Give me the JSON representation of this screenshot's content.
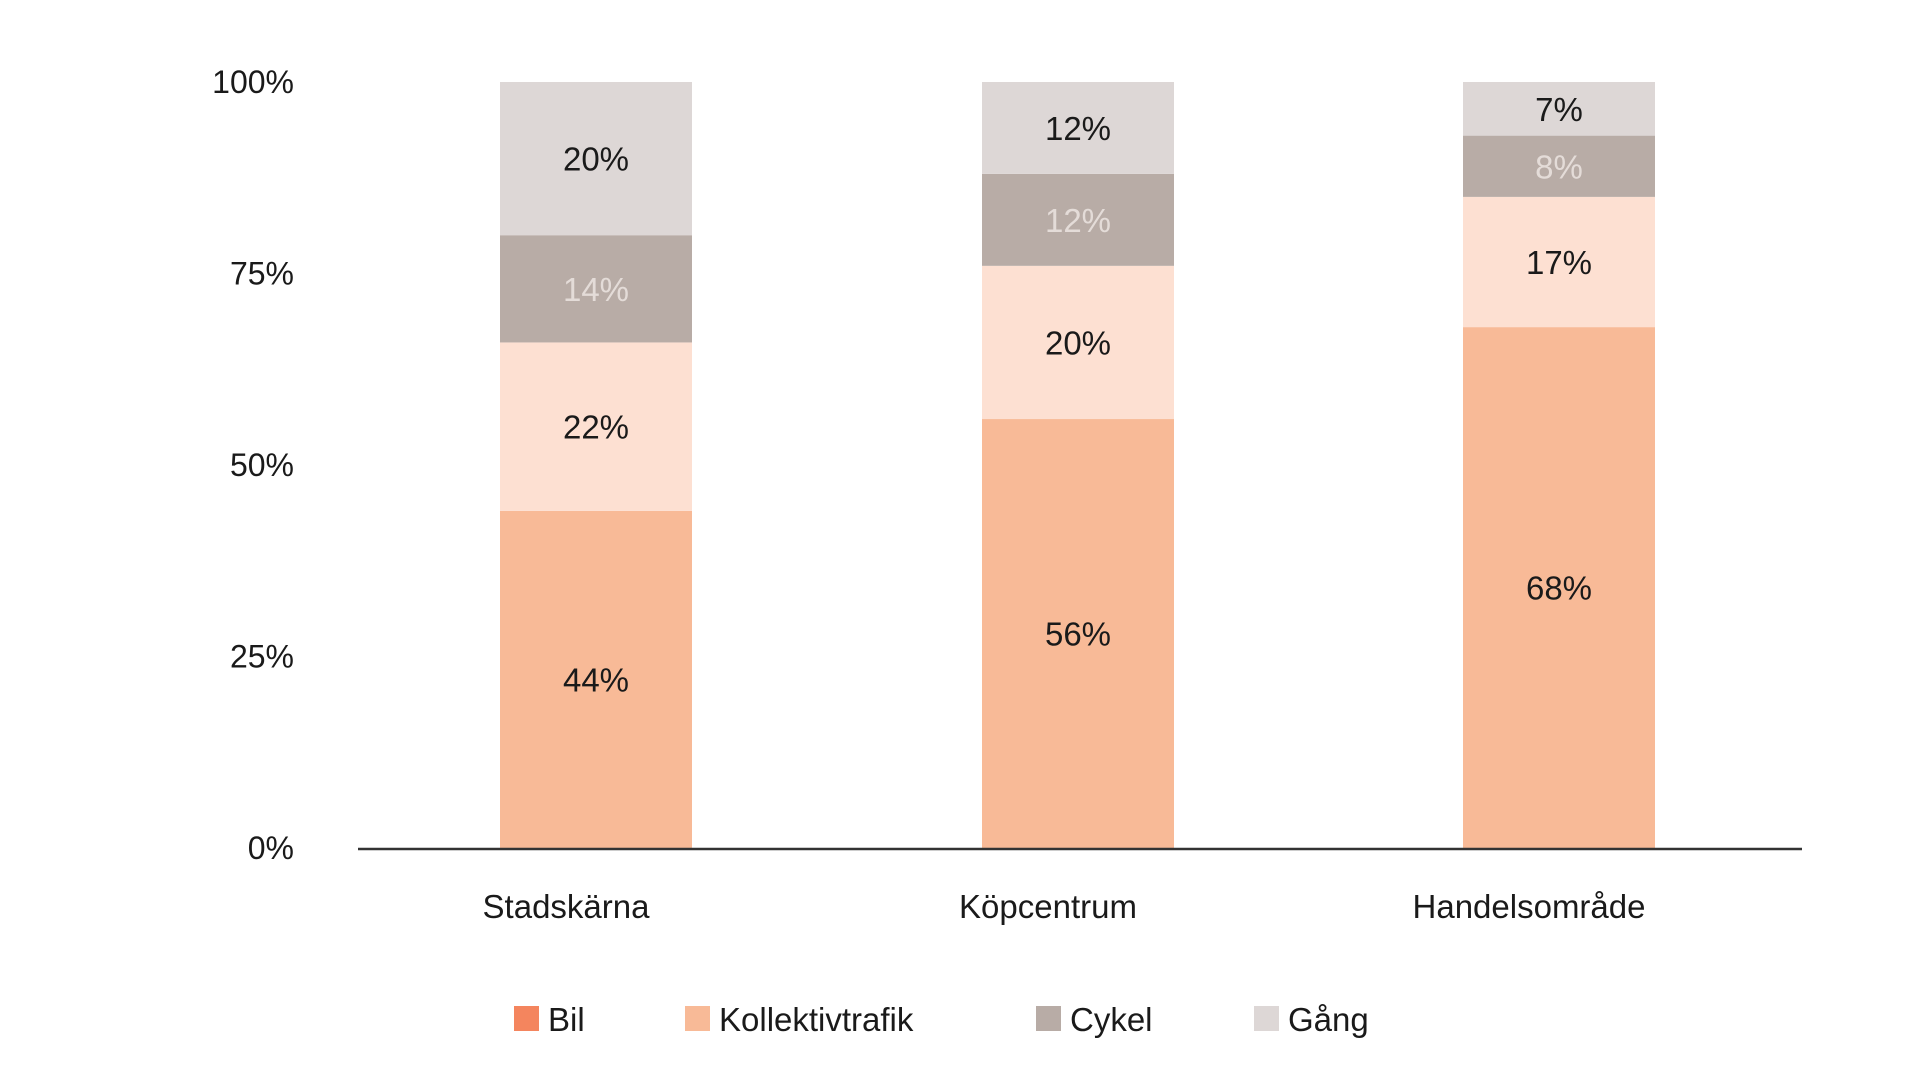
{
  "chart_data": {
    "type": "bar",
    "stacked": true,
    "categories": [
      "Stadskärna",
      "Köpcentrum",
      "Handelsområde"
    ],
    "series": [
      {
        "name": "Bil",
        "values": [
          null,
          null,
          null
        ],
        "color": "#f4855e"
      },
      {
        "name": "Kollektivtrafik",
        "values": [
          44,
          56,
          68
        ],
        "labels": [
          "44%",
          "56%",
          "68%"
        ],
        "color": "#f8ba97",
        "label_color": "#1a1a1a"
      },
      {
        "name": "",
        "values": [
          22,
          20,
          17
        ],
        "labels": [
          "22%",
          "20%",
          "17%"
        ],
        "color": "#fde0d2",
        "label_color": "#1a1a1a"
      },
      {
        "name": "Cykel",
        "values": [
          14,
          12,
          8
        ],
        "labels": [
          "14%",
          "12%",
          "8%"
        ],
        "color": "#b8aca6",
        "label_color": "#e4dcd8"
      },
      {
        "name": "Gång",
        "values": [
          20,
          12,
          7
        ],
        "labels": [
          "20%",
          "12%",
          "7%"
        ],
        "color": "#ddd7d6",
        "label_color": "#1a1a1a"
      }
    ],
    "yticks": [
      {
        "value": 0,
        "label": "0%"
      },
      {
        "value": 25,
        "label": "25%"
      },
      {
        "value": 50,
        "label": "50%"
      },
      {
        "value": 75,
        "label": "75%"
      },
      {
        "value": 100,
        "label": "100%"
      }
    ],
    "ylim": [
      0,
      100
    ],
    "legend": {
      "position": "bottom",
      "entries": [
        {
          "label": "Bil",
          "color": "#f4855e"
        },
        {
          "label": "Kollektivtrafik",
          "color": "#f8ba97"
        },
        {
          "label": "Cykel",
          "color": "#b8aca6"
        },
        {
          "label": "Gång",
          "color": "#ddd7d6"
        }
      ]
    },
    "grid": false,
    "axis_color": "#333333"
  }
}
